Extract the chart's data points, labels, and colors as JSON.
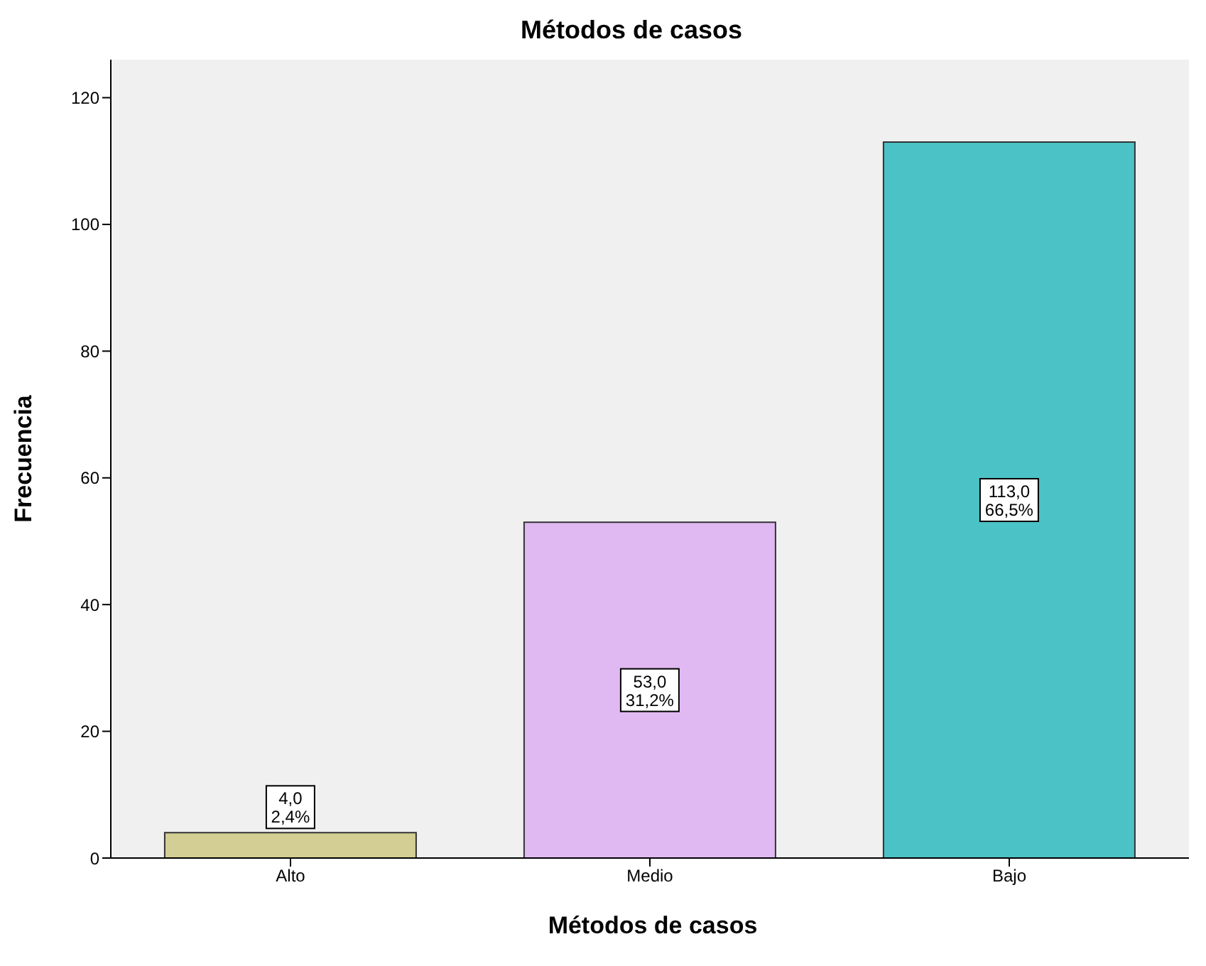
{
  "chart_data": {
    "type": "bar",
    "title": "Métodos de casos",
    "xlabel": "Métodos de casos",
    "ylabel": "Frecuencia",
    "categories": [
      "Alto",
      "Medio",
      "Bajo"
    ],
    "values": [
      4,
      53,
      113
    ],
    "colors": [
      "#d3ce93",
      "#e0b9f2",
      "#4bc2c6"
    ],
    "value_labels": [
      "4,0\n2,4%",
      "53,0\n31,2%",
      "113,0\n66,5%"
    ],
    "ylim": [
      0,
      126
    ],
    "yticks": [
      0,
      20,
      40,
      60,
      80,
      100,
      120
    ],
    "grid": false,
    "legend": false
  }
}
